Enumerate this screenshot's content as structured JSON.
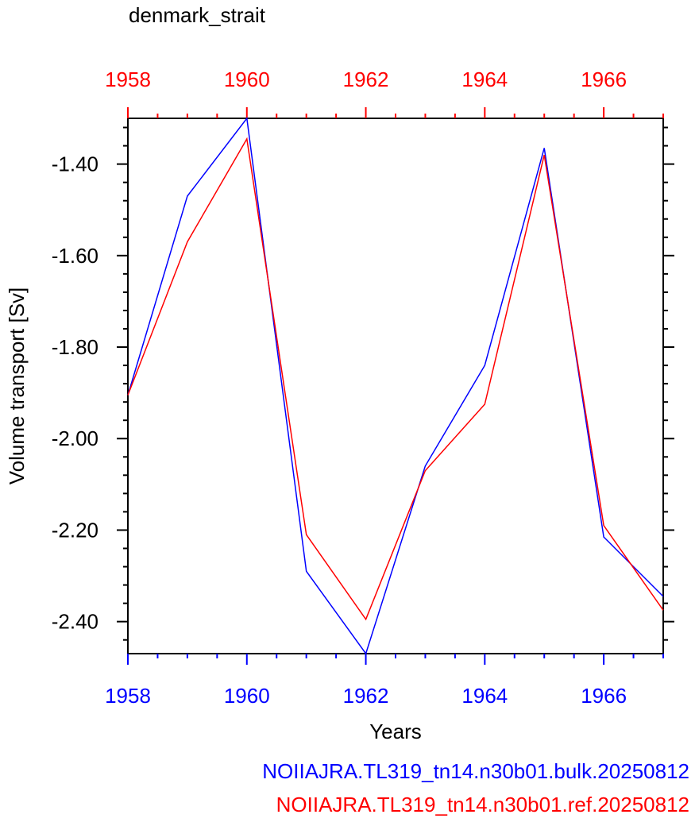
{
  "chart_data": {
    "type": "line",
    "title": "denmark_strait",
    "xlabel": "Years",
    "ylabel": "Volume transport [Sv]",
    "x": [
      1958,
      1959,
      1960,
      1961,
      1962,
      1963,
      1964,
      1965,
      1966,
      1967
    ],
    "xlim": [
      1958,
      1967
    ],
    "ylim": [
      -2.47,
      -1.3
    ],
    "x_ticks": [
      1958,
      1960,
      1962,
      1964,
      1966
    ],
    "x_tick_labels": [
      "1958",
      "1960",
      "1962",
      "1964",
      "1966"
    ],
    "y_ticks": [
      -1.4,
      -1.6,
      -1.8,
      -2.0,
      -2.2,
      -2.4
    ],
    "y_tick_labels": [
      "-1.40",
      "-1.60",
      "-1.80",
      "-2.00",
      "-2.20",
      "-2.40"
    ],
    "bottom_axis_color": "#0000ff",
    "top_axis_color": "#ff0000",
    "grid": false,
    "legend_position": "bottom-right, below axis",
    "series": [
      {
        "name": "NOIIAJRA.TL319_tn14.n30b01.bulk.20250812",
        "color": "#0000ff",
        "values": [
          -1.905,
          -1.47,
          -1.3,
          -2.29,
          -2.47,
          -2.06,
          -1.84,
          -1.365,
          -2.215,
          -2.345
        ]
      },
      {
        "name": "NOIIAJRA.TL319_tn14.n30b01.ref.20250812",
        "color": "#ff0000",
        "values": [
          -1.905,
          -1.57,
          -1.345,
          -2.21,
          -2.395,
          -2.07,
          -1.925,
          -1.38,
          -2.19,
          -2.375
        ]
      }
    ]
  }
}
